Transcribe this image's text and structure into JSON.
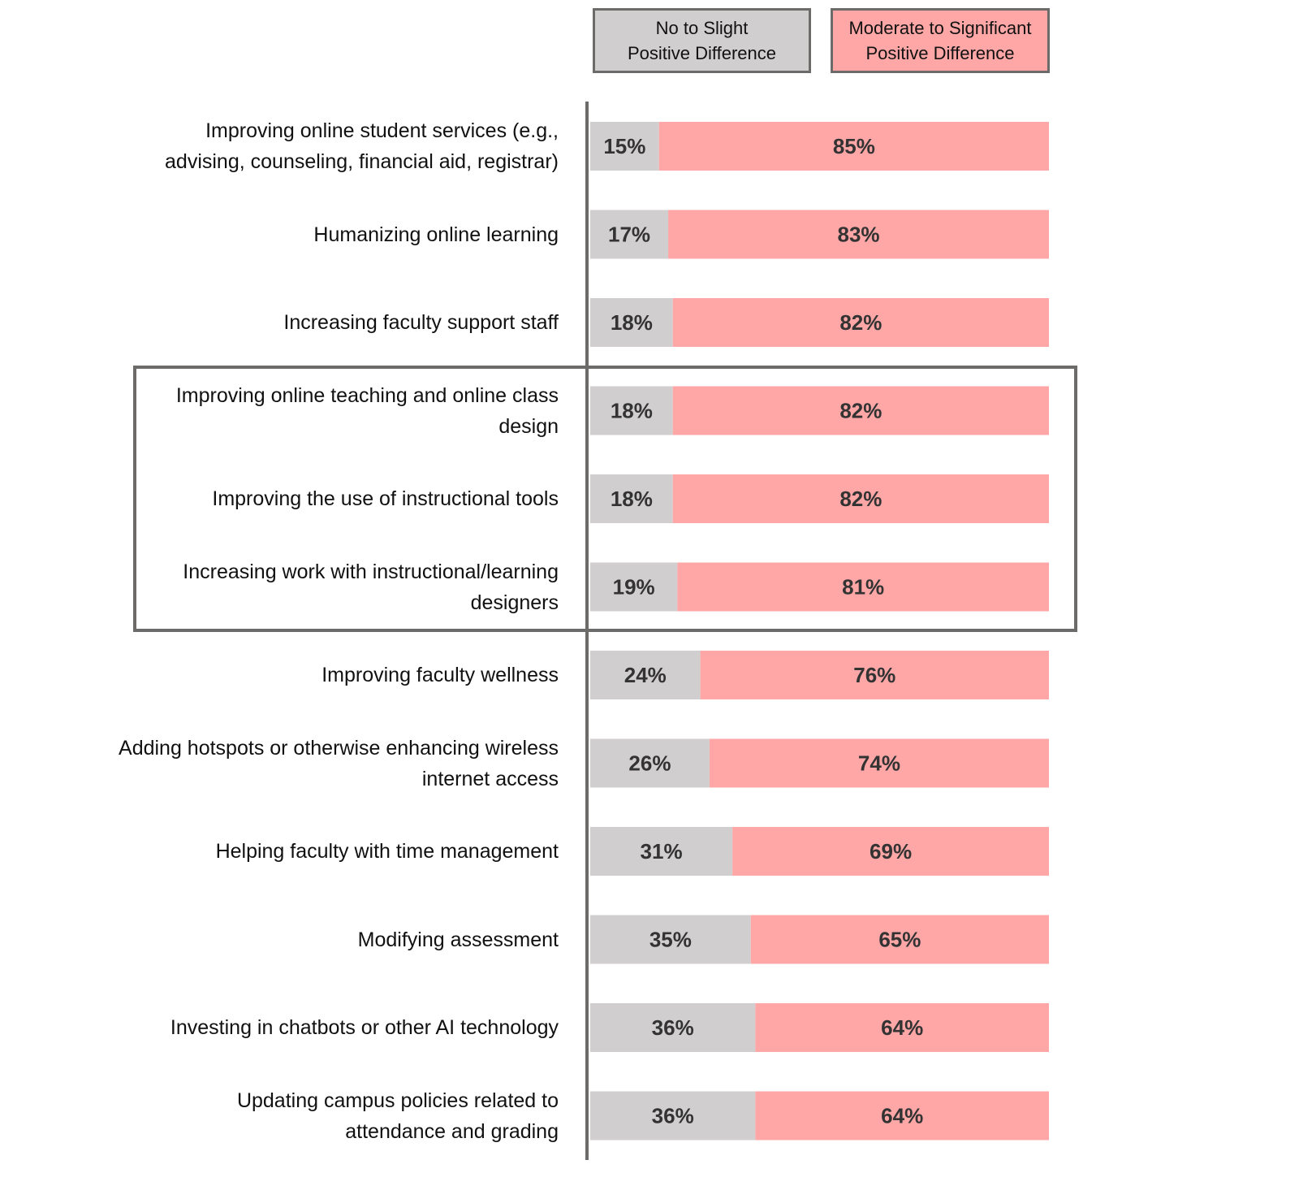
{
  "chart_data": {
    "type": "stacked_bar_horizontal",
    "categories": [
      "Improving online student services (e.g.,\nadvising, counseling, financial aid, registrar)",
      "Humanizing online learning",
      "Increasing faculty support staff",
      "Improving online teaching and online class\ndesign",
      "Improving the use of instructional tools",
      "Increasing work with instructional/learning\ndesigners",
      "Improving faculty wellness",
      "Adding hotspots or otherwise enhancing wireless\ninternet access",
      "Helping faculty with time management",
      "Modifying assessment",
      "Investing in chatbots or other AI technology",
      "Updating campus policies related to\nattendance and grading"
    ],
    "series": [
      {
        "name": "No to Slight\nPositive Difference",
        "color": "#d0cece",
        "values": [
          15,
          17,
          18,
          18,
          18,
          19,
          24,
          26,
          31,
          35,
          36,
          36
        ],
        "value_labels": [
          "15%",
          "17%",
          "18%",
          "18%",
          "18%",
          "19%",
          "24%",
          "26%",
          "31%",
          "35%",
          "36%",
          "36%"
        ]
      },
      {
        "name": "Moderate to Significant\nPositive Difference",
        "color": "#ffa7a7",
        "values": [
          85,
          83,
          82,
          82,
          82,
          81,
          76,
          74,
          69,
          65,
          64,
          64
        ],
        "value_labels": [
          "85%",
          "83%",
          "82%",
          "82%",
          "82%",
          "81%",
          "76%",
          "74%",
          "69%",
          "65%",
          "64%",
          "64%"
        ]
      }
    ],
    "xlim": [
      0,
      100
    ]
  }
}
